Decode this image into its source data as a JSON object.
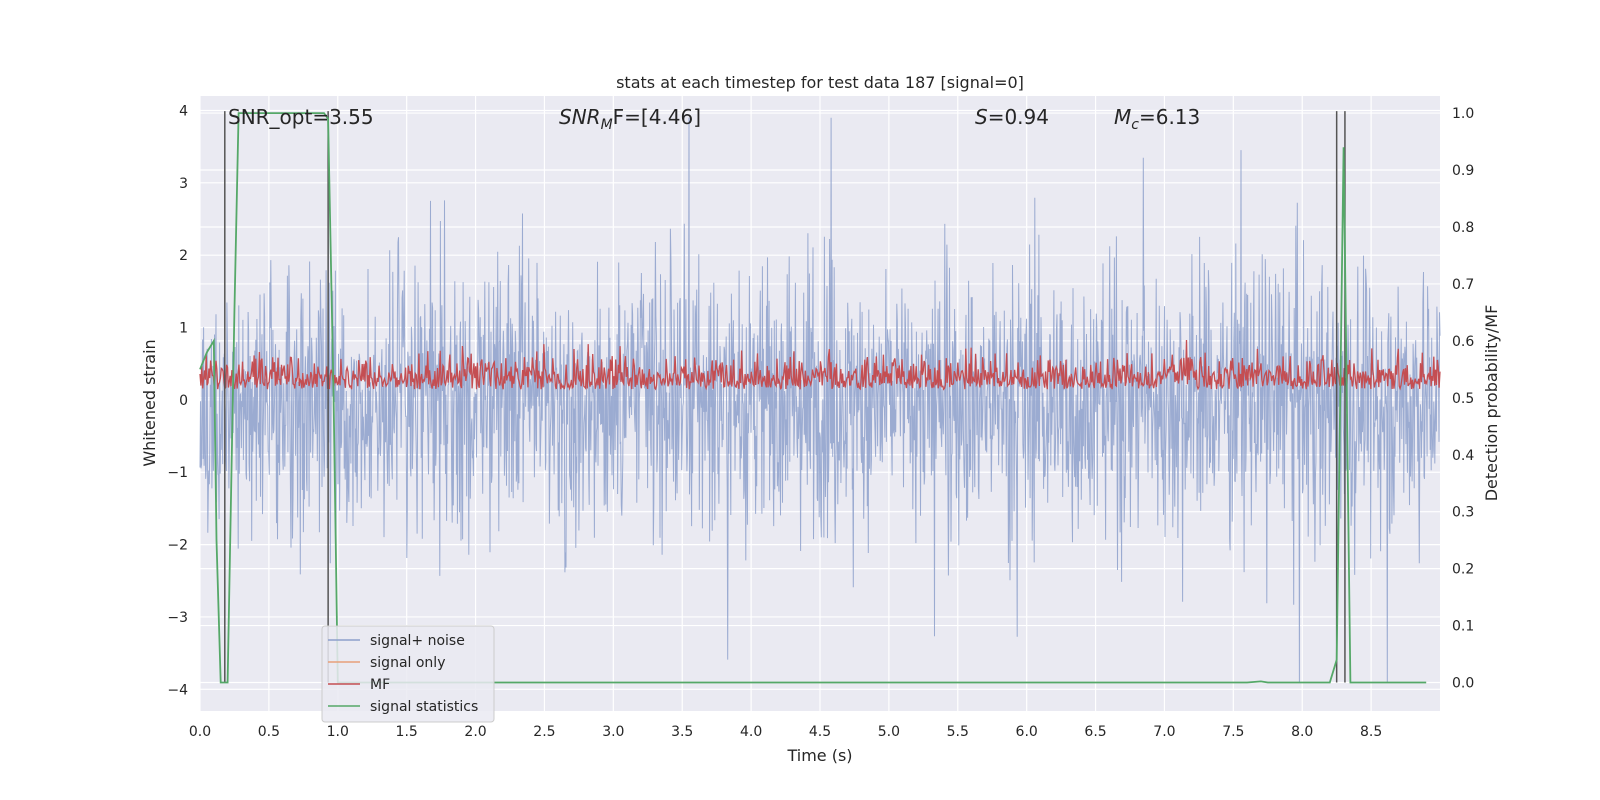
{
  "chart_data": {
    "type": "line",
    "title": "stats at each timestep for test data 187 [signal=0]",
    "xlabel": "Time (s)",
    "ylabel_left": "Whitened strain",
    "ylabel_right": "Detection probability/MF",
    "xlim": [
      0.0,
      9.0
    ],
    "ylim_left": [
      -4.3,
      4.2
    ],
    "ylim_right": [
      -0.05,
      1.03
    ],
    "xticks": [
      "0.0",
      "0.5",
      "1.0",
      "1.5",
      "2.0",
      "2.5",
      "3.0",
      "3.5",
      "4.0",
      "4.5",
      "5.0",
      "5.5",
      "6.0",
      "6.5",
      "7.0",
      "7.5",
      "8.0",
      "8.5"
    ],
    "yticks_left": [
      "−4",
      "−3",
      "−2",
      "−1",
      "0",
      "1",
      "2",
      "3",
      "4"
    ],
    "yticks_right": [
      "0.0",
      "0.1",
      "0.2",
      "0.3",
      "0.4",
      "0.5",
      "0.6",
      "0.7",
      "0.8",
      "0.9",
      "1.0"
    ],
    "grid": true,
    "legend_position": "lower-left",
    "annotations": {
      "snr_opt": "SNR_opt=3.55",
      "snr_mf_main": "SNR",
      "snr_mf_sub": "M",
      "snr_mf_rest": "F=[4.46]",
      "s_main": "S",
      "s_rest": "=0.94",
      "mc_main": "M",
      "mc_sub": "c",
      "mc_rest": "=6.13"
    },
    "series": [
      {
        "name": "signal+ noise",
        "color": "#8da0cb",
        "axis": "left",
        "description_envelope": [
          -4.0,
          4.0
        ]
      },
      {
        "name": "signal only",
        "color": "#e8a07a",
        "axis": "left",
        "values": []
      },
      {
        "name": "MF",
        "color": "#c44e52",
        "axis": "right",
        "range": [
          0.5,
          0.6
        ]
      },
      {
        "name": "signal statistics",
        "color": "#55a868",
        "axis": "right",
        "x": [
          0.0,
          0.05,
          0.1,
          0.12,
          0.15,
          0.2,
          0.25,
          0.28,
          0.9,
          0.93,
          0.97,
          1.0,
          7.6,
          7.7,
          7.75,
          8.2,
          8.25,
          8.3,
          8.35,
          8.9
        ],
        "y": [
          0.55,
          0.58,
          0.6,
          0.25,
          0.0,
          0.0,
          0.65,
          1.0,
          1.0,
          0.99,
          0.5,
          0.0,
          0.0,
          0.002,
          0.0,
          0.0,
          0.04,
          0.94,
          0.0,
          0.0
        ]
      }
    ],
    "vertical_markers": [
      0.18,
      0.93,
      8.25,
      8.31
    ]
  }
}
